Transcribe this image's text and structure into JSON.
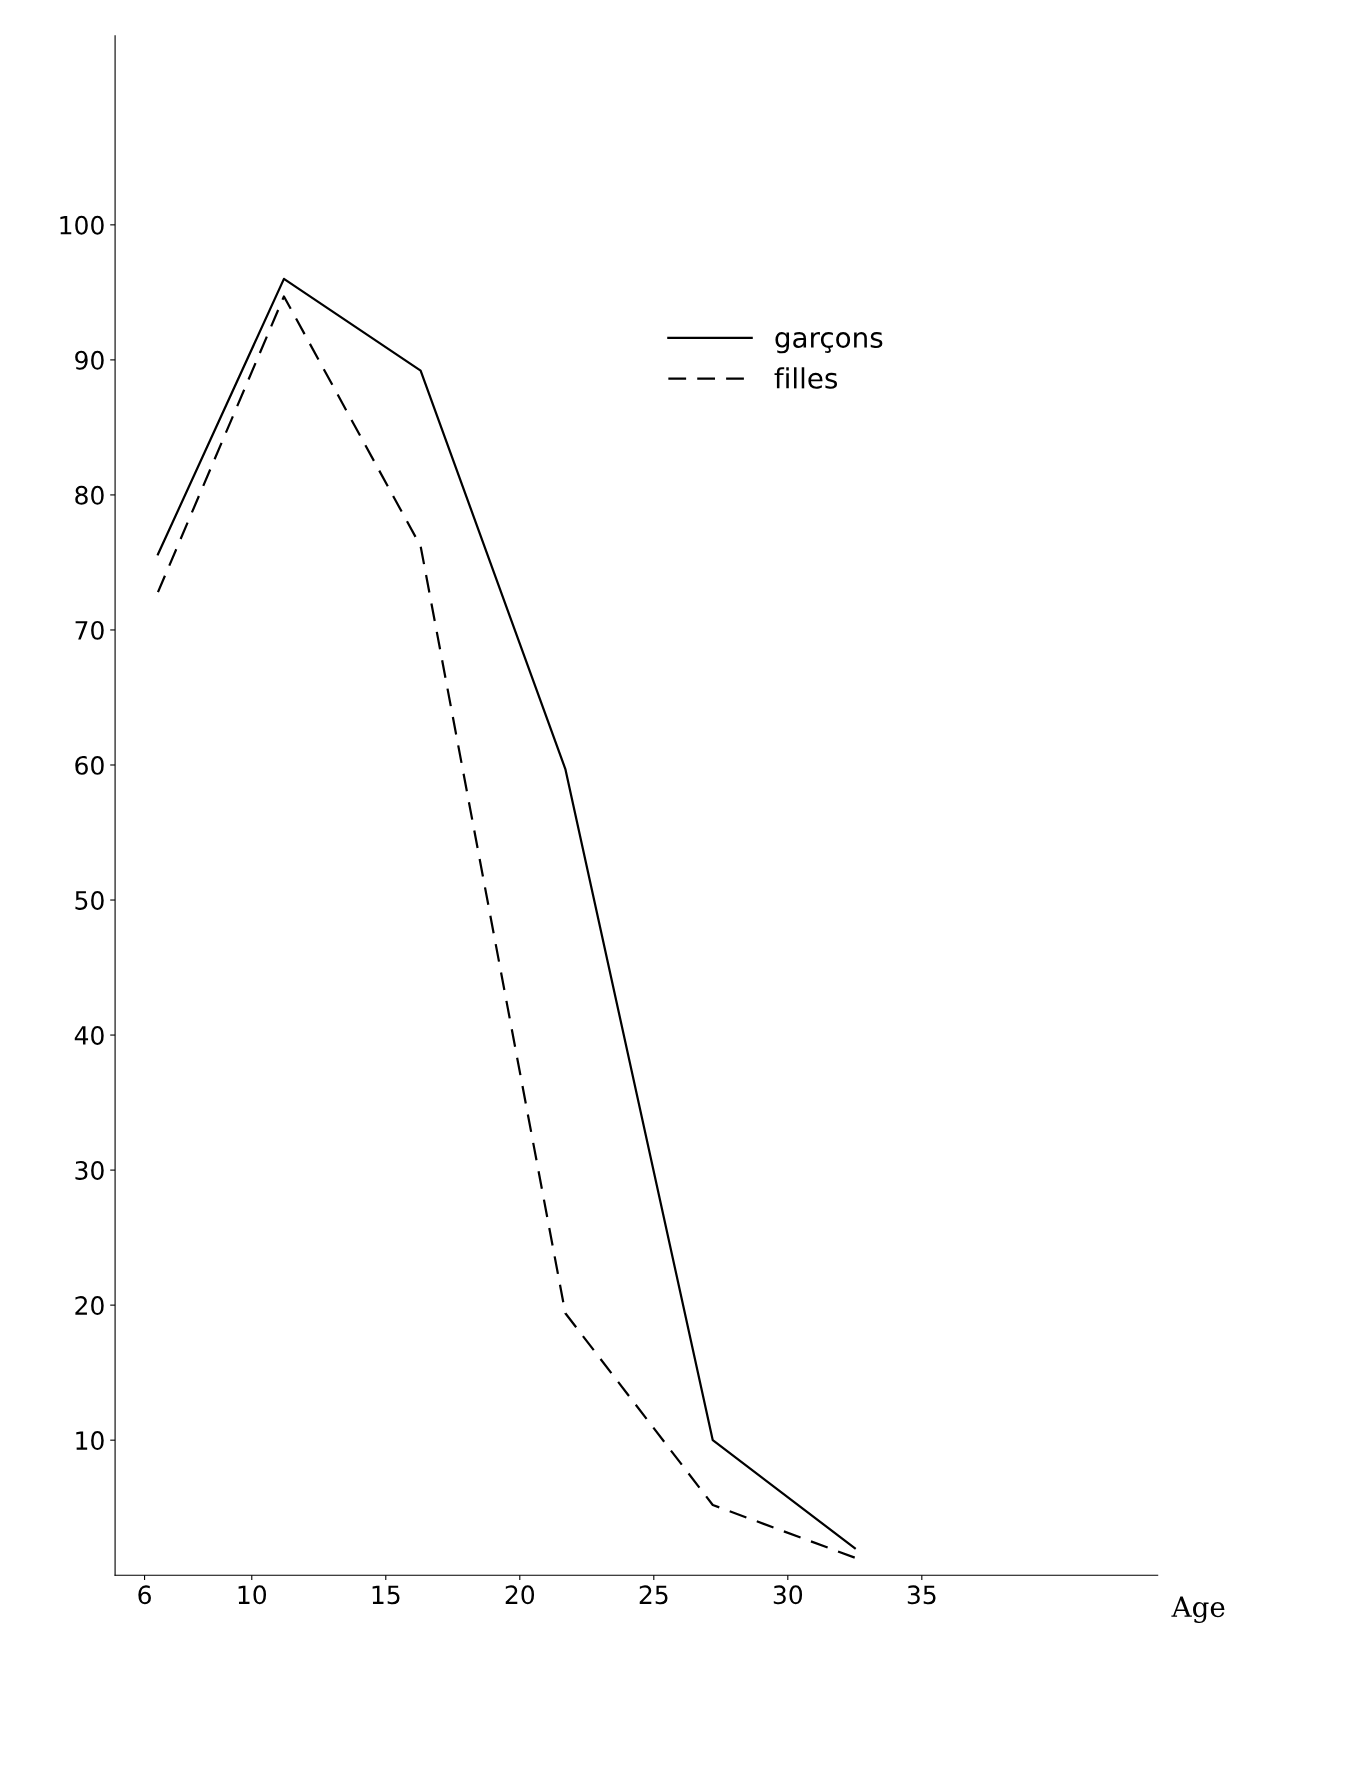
{
  "chart_data": {
    "type": "line",
    "xlabel": "Age",
    "x": [
      6.5,
      11.2,
      16.3,
      21.7,
      27.2,
      32.5
    ],
    "series": [
      {
        "name": "garçons",
        "color": "#000000",
        "line_style": "solid",
        "values": [
          75.6,
          96,
          89.2,
          59.7,
          10,
          2
        ]
      },
      {
        "name": "filles",
        "color": "#000000",
        "line_style": "dashed",
        "values": [
          72.8,
          94.7,
          76.2,
          19.4,
          5.2,
          1.3
        ]
      }
    ],
    "xlim": [
      4.9,
      43.8
    ],
    "xticks": [
      6,
      10,
      15,
      20,
      25,
      30,
      35
    ],
    "ylim": [
      0,
      114
    ],
    "yticks": [
      10,
      20,
      30,
      40,
      50,
      60,
      70,
      80,
      90,
      100
    ],
    "grid": false,
    "legend": "top right",
    "marker": "none"
  }
}
